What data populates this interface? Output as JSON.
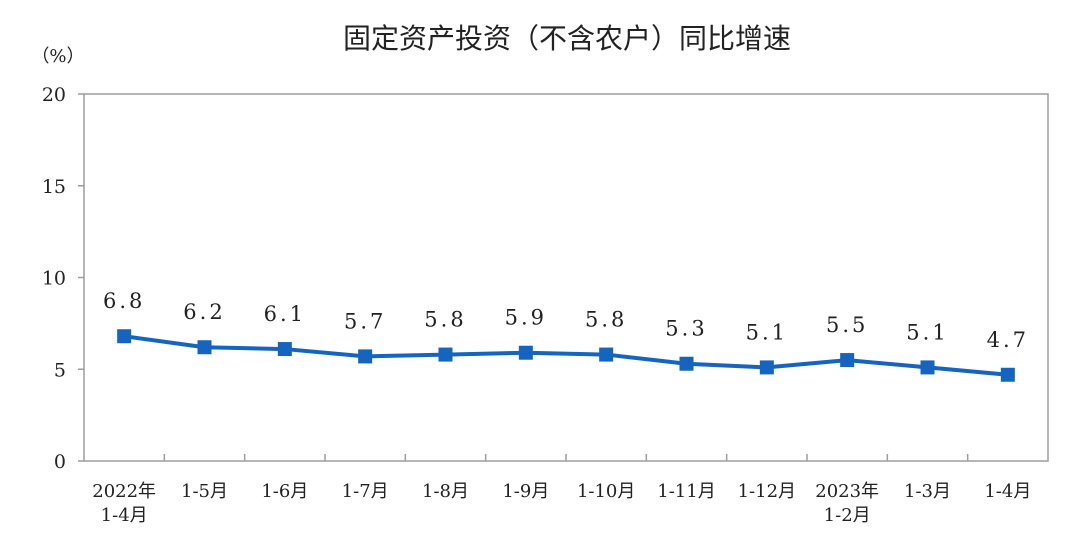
{
  "chart_data": {
    "type": "line",
    "title": "固定资产投资（不含农户）同比增速",
    "unit_label": "（%）",
    "ylim": [
      0,
      20
    ],
    "yticks": [
      "0",
      "5",
      "10",
      "15",
      "20"
    ],
    "ytick_values": [
      0,
      5,
      10,
      15,
      20
    ],
    "grid": false,
    "legend": "none",
    "categories": [
      [
        "2022年",
        "1-4月"
      ],
      [
        "1-5月"
      ],
      [
        "1-6月"
      ],
      [
        "1-7月"
      ],
      [
        "1-8月"
      ],
      [
        "1-9月"
      ],
      [
        "1-10月"
      ],
      [
        "1-11月"
      ],
      [
        "1-12月"
      ],
      [
        "2023年",
        "1-2月"
      ],
      [
        "1-3月"
      ],
      [
        "1-4月"
      ]
    ],
    "series": [
      {
        "values": [
          6.8,
          6.2,
          6.1,
          5.7,
          5.8,
          5.9,
          5.8,
          5.3,
          5.1,
          5.5,
          5.1,
          4.7
        ],
        "labels": [
          "6.8",
          "6.2",
          "6.1",
          "5.7",
          "5.8",
          "5.9",
          "5.8",
          "5.3",
          "5.1",
          "5.5",
          "5.1",
          "4.7"
        ],
        "color": "#1565c0"
      }
    ],
    "axis_color": "#9e9e9e"
  }
}
